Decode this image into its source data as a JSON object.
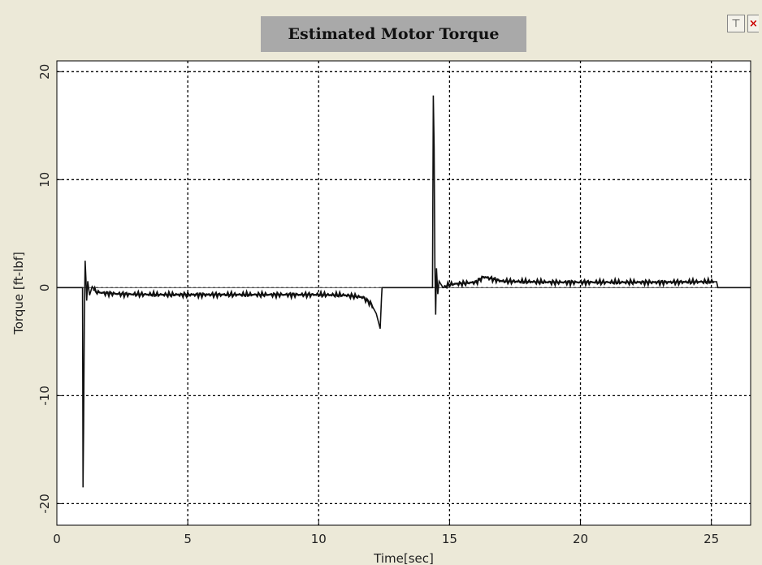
{
  "window": {
    "toolbar": {
      "pin_icon": "pin-icon",
      "close_icon": "close-icon"
    }
  },
  "chart_data": {
    "type": "line",
    "title": "Estimated Motor Torque",
    "xlabel": "Time[sec]",
    "ylabel": "Torque [ft-lbf]",
    "xlim": [
      0,
      26.5
    ],
    "ylim": [
      -22,
      21
    ],
    "xticks": [
      0,
      5,
      10,
      15,
      20,
      25
    ],
    "yticks": [
      -20,
      -10,
      0,
      10,
      20
    ],
    "grid": true,
    "line_color": "#111111",
    "series": [
      {
        "x": [
          0,
          0.98,
          1.0,
          1.02,
          1.05,
          1.08,
          1.11,
          1.14,
          1.18,
          1.25,
          1.35,
          1.5,
          1.8,
          2.5,
          4,
          6,
          8,
          10,
          11,
          11.7,
          12.0,
          12.2,
          12.35,
          12.4,
          12.42,
          14.35,
          14.38,
          14.41,
          14.44,
          14.47,
          14.5,
          14.55,
          14.6,
          14.75,
          15.0,
          15.5,
          16.0,
          16.3,
          17,
          19,
          21,
          23,
          25.0,
          25.2,
          25.25,
          26.5
        ],
        "y": [
          0,
          0,
          -18.5,
          -13,
          -3,
          2.5,
          0.8,
          -1.2,
          0.6,
          -0.7,
          0.1,
          -0.4,
          -0.5,
          -0.6,
          -0.65,
          -0.65,
          -0.65,
          -0.65,
          -0.7,
          -0.9,
          -1.5,
          -2.4,
          -3.8,
          -1,
          0,
          0,
          17.8,
          13,
          2,
          -2.5,
          1.8,
          -0.6,
          0.6,
          0,
          0.3,
          0.4,
          0.5,
          1.0,
          0.6,
          0.5,
          0.5,
          0.5,
          0.55,
          0.55,
          0,
          0
        ]
      }
    ]
  }
}
